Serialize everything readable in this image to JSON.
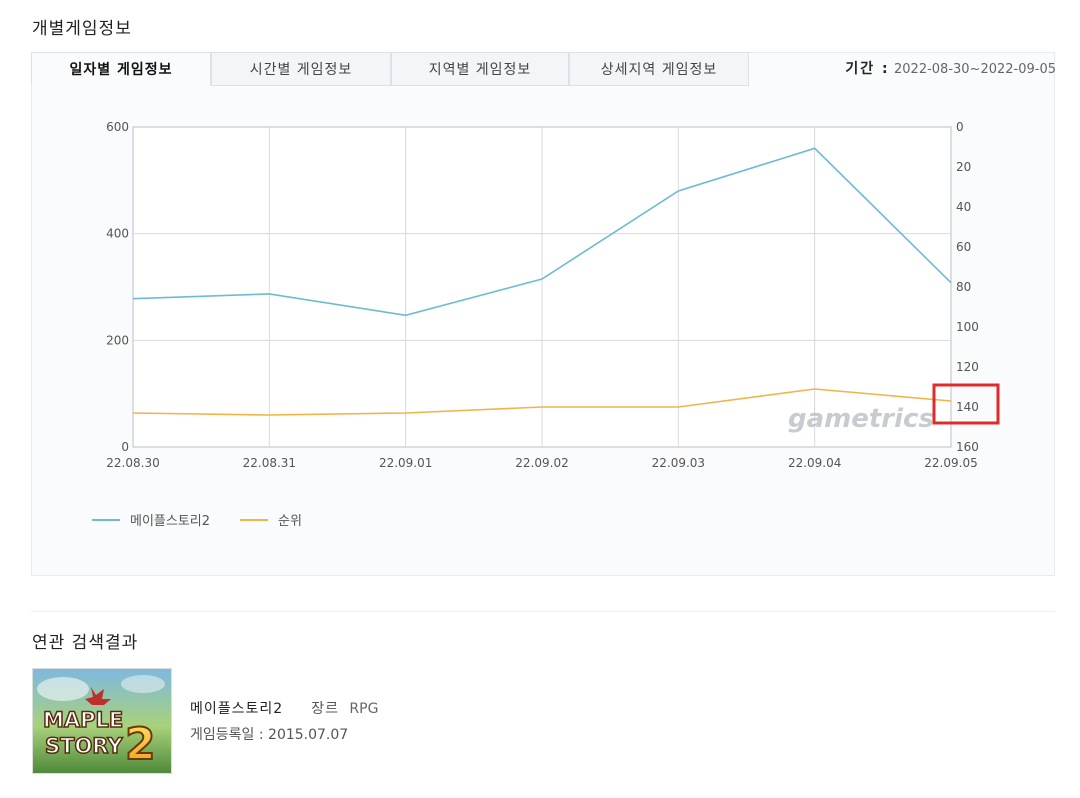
{
  "section_title": "개별게임정보",
  "tabs": [
    {
      "label": "일자별 게임정보",
      "active": true
    },
    {
      "label": "시간별 게임정보",
      "active": false
    },
    {
      "label": "지역별 게임정보",
      "active": false
    },
    {
      "label": "상세지역 게임정보",
      "active": false
    }
  ],
  "period": {
    "label": "기간 :",
    "value": "2022-08-30~2022-09-05"
  },
  "watermark": "gametrics",
  "colors": {
    "series_1": "#6bbcd0",
    "series_2": "#f2b34a",
    "highlight": "#e02b2b"
  },
  "chart_data": {
    "type": "line",
    "x": [
      "22.08.30",
      "22.08.31",
      "22.09.01",
      "22.09.02",
      "22.09.03",
      "22.09.04",
      "22.09.05"
    ],
    "y_left_ticks": [
      "0",
      "200",
      "400",
      "600"
    ],
    "y_left_range": [
      0,
      600
    ],
    "y_right_ticks": [
      "0",
      "20",
      "40",
      "60",
      "80",
      "100",
      "120",
      "140",
      "160"
    ],
    "y_right_range": [
      0,
      160
    ],
    "y_right_inverted": true,
    "grid": true,
    "legend_placement": "bottom-left",
    "series": [
      {
        "name": "메이플스토리2",
        "axis": "left",
        "values": [
          278,
          287,
          247,
          315,
          480,
          560,
          308
        ]
      },
      {
        "name": "순위",
        "axis": "right",
        "values": [
          143,
          144,
          143,
          140,
          140,
          131,
          137
        ]
      }
    ],
    "highlight_label": "140"
  },
  "related": {
    "title": "연관 검색결과",
    "game_name": "메이플스토리2",
    "genre_label": "장르",
    "genre_value": "RPG",
    "registered_label": "게임등록일 :",
    "registered_value": "2015.07.07",
    "thumbnail_logo": "MAPLE STORY 2"
  }
}
